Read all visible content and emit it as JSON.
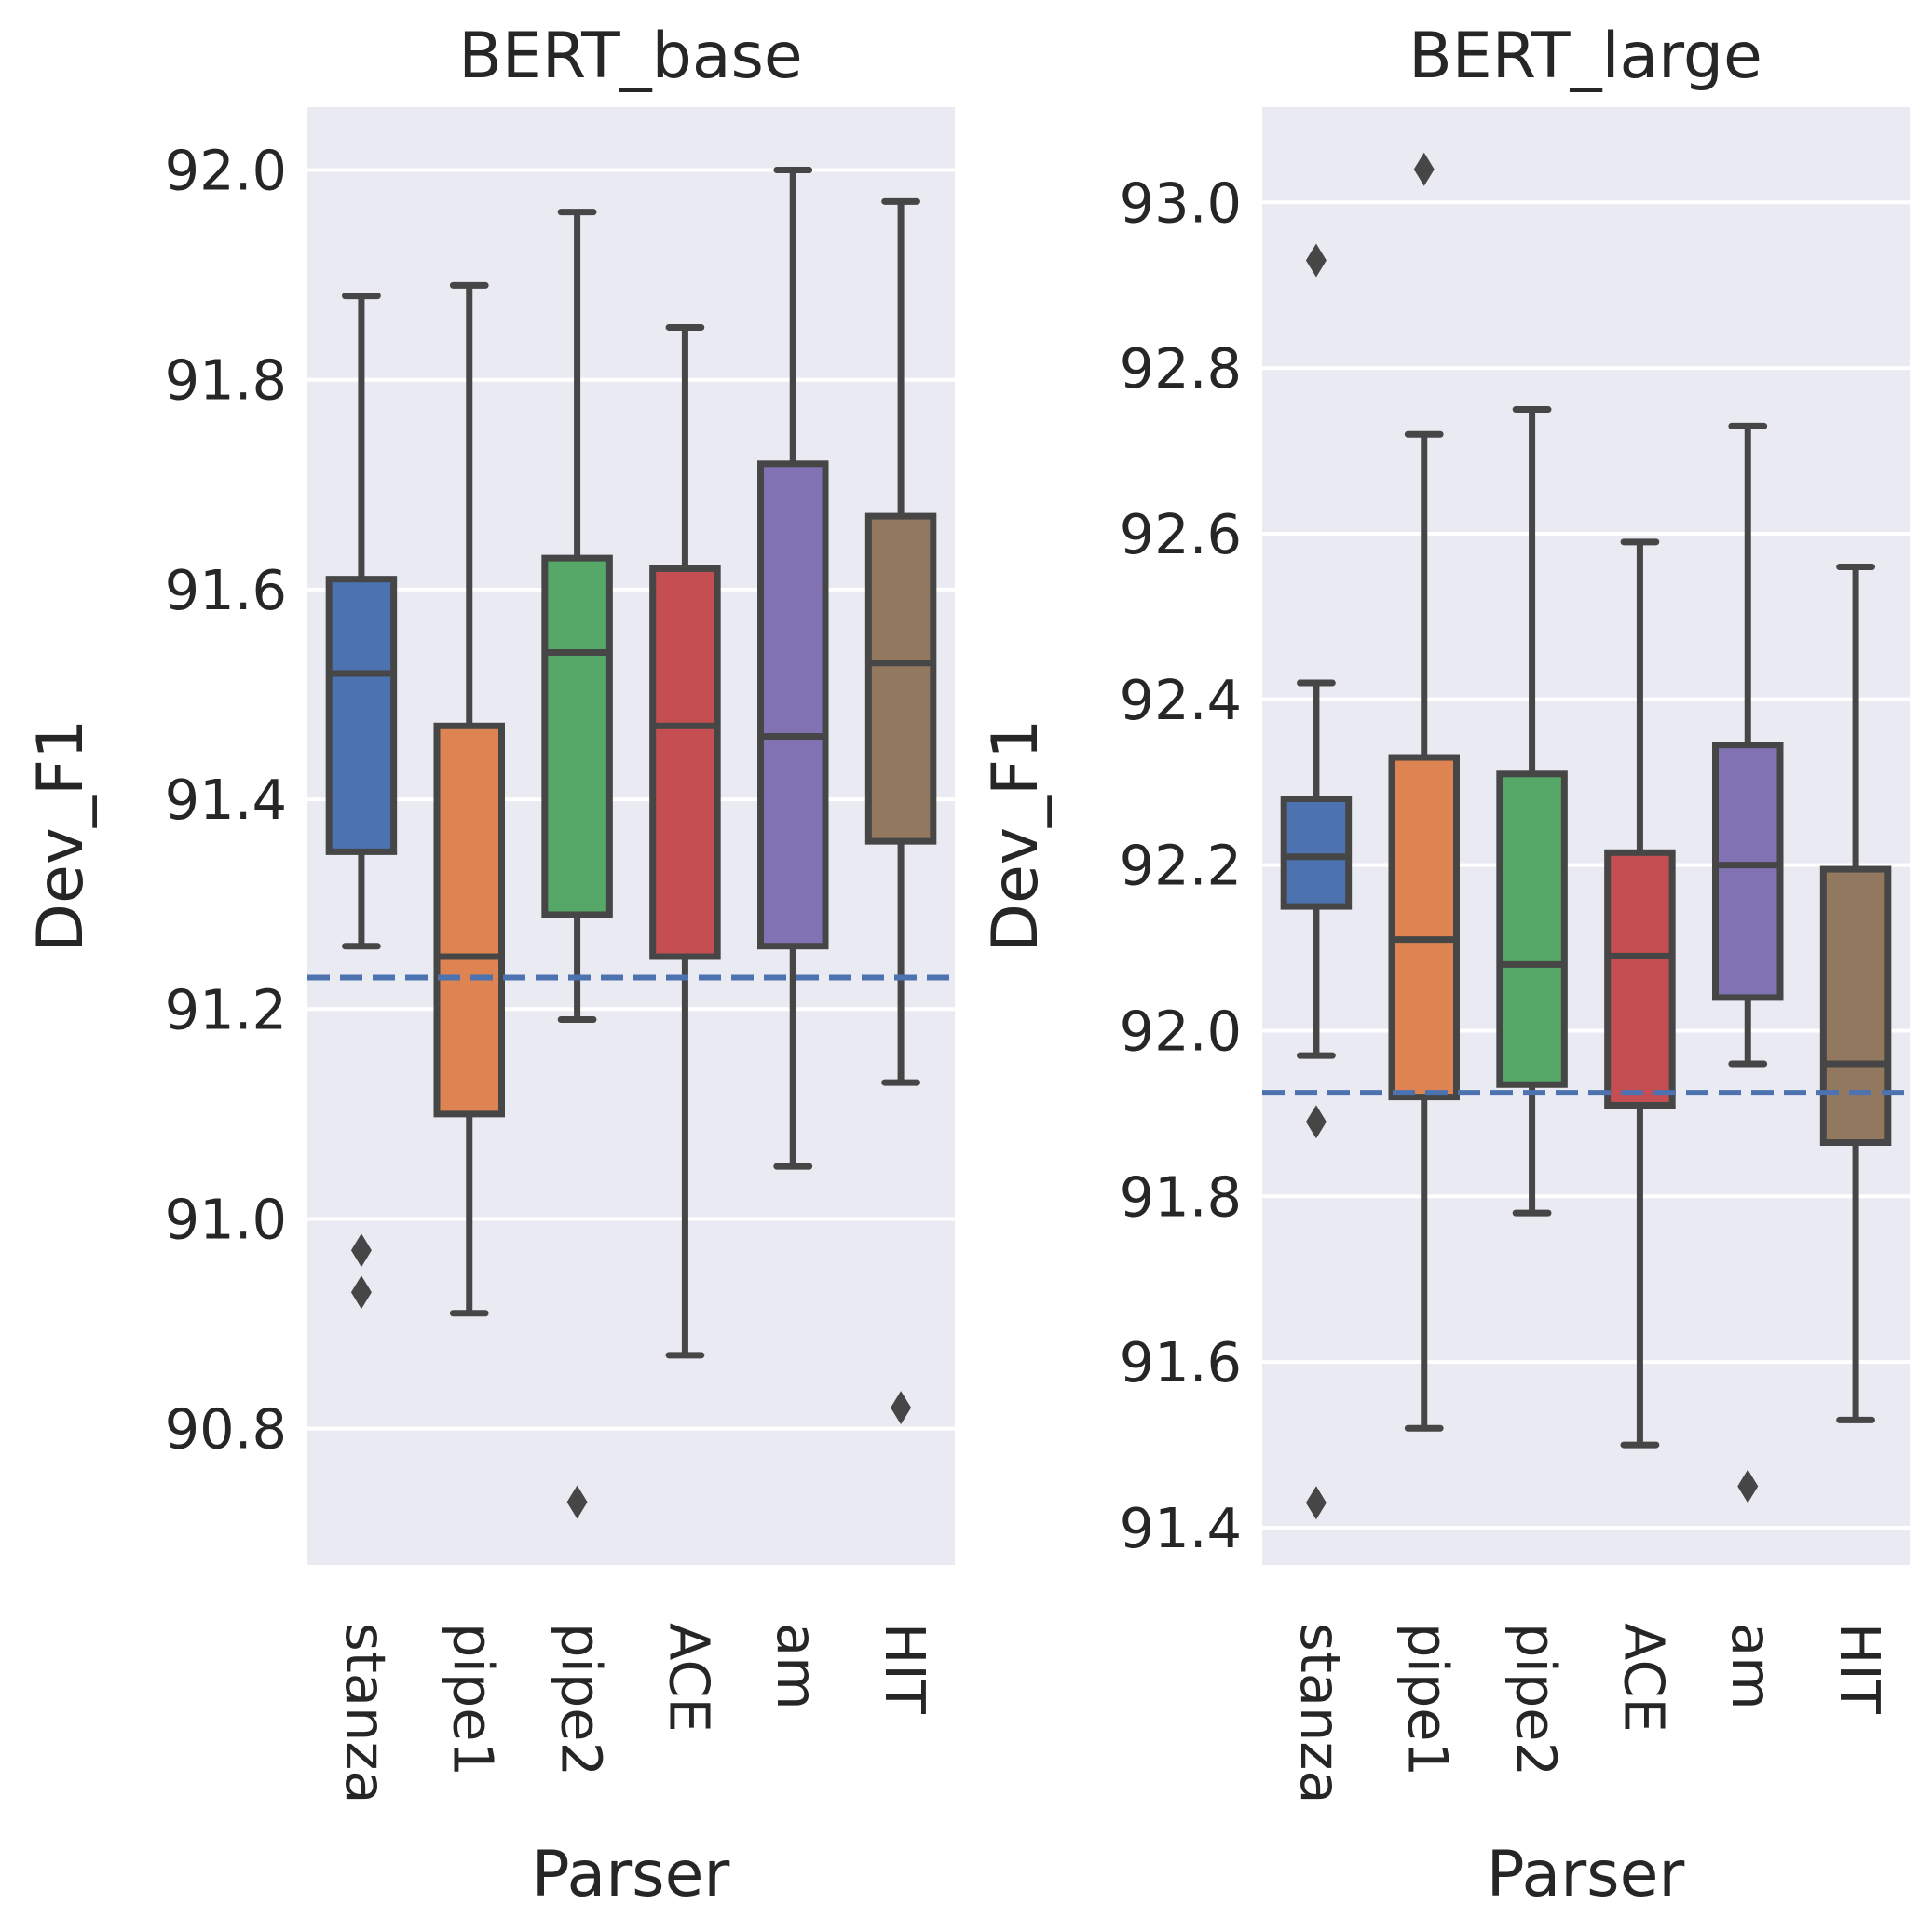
{
  "chart_data": [
    {
      "type": "box",
      "title": "BERT_base",
      "xlabel": "Parser",
      "ylabel": "Dev_F1",
      "ylim": [
        90.67,
        92.06
      ],
      "yticks": [
        "90.8",
        "91.0",
        "91.2",
        "91.4",
        "91.6",
        "91.8",
        "92.0"
      ],
      "baseline": 91.23,
      "baseline_color": "#4c72b0",
      "background": "#eaeaf2",
      "grid": true,
      "categories": [
        "stanza",
        "pipe1",
        "pipe2",
        "ACE",
        "am",
        "HIT"
      ],
      "colors": [
        "#4c72b0",
        "#dd8452",
        "#55a868",
        "#c44e52",
        "#8172b3",
        "#937860"
      ],
      "boxes": [
        {
          "whislo": 91.26,
          "q1": 91.35,
          "med": 91.52,
          "q3": 91.61,
          "whishi": 91.88,
          "fliers": [
            90.97,
            90.93
          ]
        },
        {
          "whislo": 90.91,
          "q1": 91.1,
          "med": 91.25,
          "q3": 91.47,
          "whishi": 91.89,
          "fliers": []
        },
        {
          "whislo": 91.19,
          "q1": 91.29,
          "med": 91.54,
          "q3": 91.63,
          "whishi": 91.96,
          "fliers": [
            90.73
          ]
        },
        {
          "whislo": 90.87,
          "q1": 91.25,
          "med": 91.47,
          "q3": 91.62,
          "whishi": 91.85,
          "fliers": []
        },
        {
          "whislo": 91.05,
          "q1": 91.26,
          "med": 91.46,
          "q3": 91.72,
          "whishi": 92.0,
          "fliers": []
        },
        {
          "whislo": 91.13,
          "q1": 91.36,
          "med": 91.53,
          "q3": 91.67,
          "whishi": 91.97,
          "fliers": [
            90.82
          ]
        }
      ]
    },
    {
      "type": "box",
      "title": "BERT_large",
      "xlabel": "Parser",
      "ylabel": "Dev_F1",
      "ylim": [
        91.355,
        93.115
      ],
      "yticks": [
        "91.4",
        "91.6",
        "91.8",
        "92.0",
        "92.2",
        "92.4",
        "92.6",
        "92.8",
        "93.0"
      ],
      "baseline": 91.925,
      "baseline_color": "#4c72b0",
      "background": "#eaeaf2",
      "grid": true,
      "categories": [
        "stanza",
        "pipe1",
        "pipe2",
        "ACE",
        "am",
        "HIT"
      ],
      "colors": [
        "#4c72b0",
        "#dd8452",
        "#55a868",
        "#c44e52",
        "#8172b3",
        "#937860"
      ],
      "boxes": [
        {
          "whislo": 91.97,
          "q1": 92.15,
          "med": 92.21,
          "q3": 92.28,
          "whishi": 92.42,
          "fliers": [
            92.93,
            91.89,
            91.43
          ]
        },
        {
          "whislo": 91.52,
          "q1": 91.92,
          "med": 92.11,
          "q3": 92.33,
          "whishi": 92.72,
          "fliers": [
            93.04
          ]
        },
        {
          "whislo": 91.78,
          "q1": 91.935,
          "med": 92.08,
          "q3": 92.31,
          "whishi": 92.75,
          "fliers": []
        },
        {
          "whislo": 91.5,
          "q1": 91.91,
          "med": 92.09,
          "q3": 92.215,
          "whishi": 92.59,
          "fliers": []
        },
        {
          "whislo": 91.96,
          "q1": 92.04,
          "med": 92.2,
          "q3": 92.345,
          "whishi": 92.73,
          "fliers": [
            91.45
          ]
        },
        {
          "whislo": 91.53,
          "q1": 91.865,
          "med": 91.96,
          "q3": 92.195,
          "whishi": 92.56,
          "fliers": []
        }
      ]
    }
  ]
}
